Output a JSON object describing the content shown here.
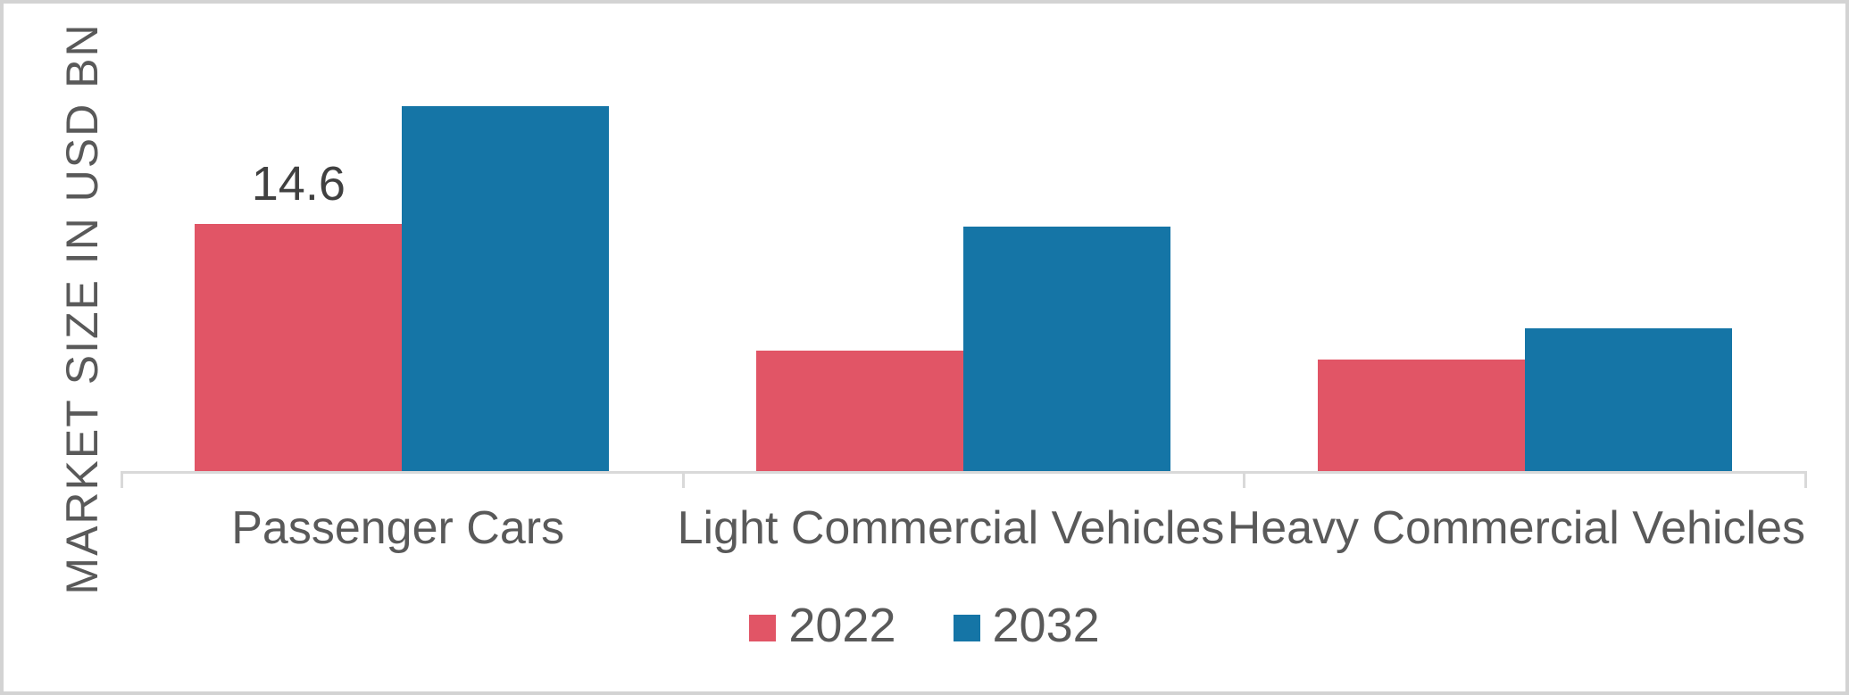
{
  "chart_data": {
    "type": "bar",
    "title": "",
    "xlabel": "",
    "ylabel": "MARKET SIZE IN USD BN",
    "categories": [
      "Passenger Cars",
      "Light Commercial Vehicles",
      "Heavy Commercial Vehicles"
    ],
    "series": [
      {
        "name": "2022",
        "color": "#E15566",
        "values": [
          14.6,
          7.1,
          6.6
        ],
        "data_labels": [
          "14.6",
          "",
          ""
        ]
      },
      {
        "name": "2032",
        "color": "#1575A6",
        "values": [
          21.5,
          14.4,
          8.4
        ],
        "data_labels": [
          "",
          "",
          ""
        ]
      }
    ],
    "ylim": [
      0,
      22.8
    ],
    "grid": false,
    "y_axis_ticks_visible": false,
    "legend_position": "bottom",
    "axis_color": "#D9D9D9",
    "text_color": "#595959",
    "data_label_color": "#404040"
  }
}
